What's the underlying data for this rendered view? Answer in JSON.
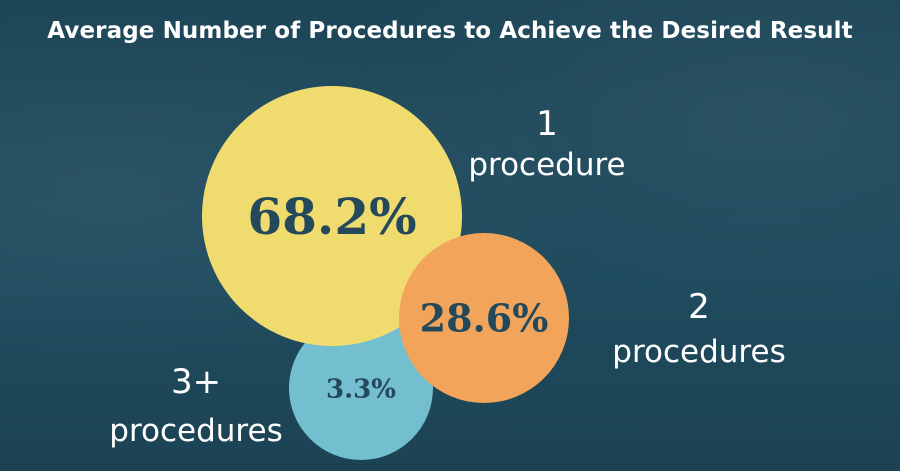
{
  "title": "Average Number of Procedures to Achieve the Desired Result",
  "colors": {
    "background": "#1f4a5c",
    "yellow": "#f0dc6e",
    "orange": "#f2a55a",
    "blue": "#74bfcf",
    "value_text": "#24495a",
    "label_text": "#ffffff"
  },
  "chart_data": {
    "type": "bubble",
    "title": "Average Number of Procedures to Achieve the Desired Result",
    "categories": [
      {
        "number": "1",
        "unit": "procedure"
      },
      {
        "number": "2",
        "unit": "procedures"
      },
      {
        "number": "3+",
        "unit": "procedures"
      }
    ],
    "values": [
      68.2,
      28.6,
      3.3
    ],
    "value_labels": [
      "68.2%",
      "28.6%",
      "3.3%"
    ]
  }
}
